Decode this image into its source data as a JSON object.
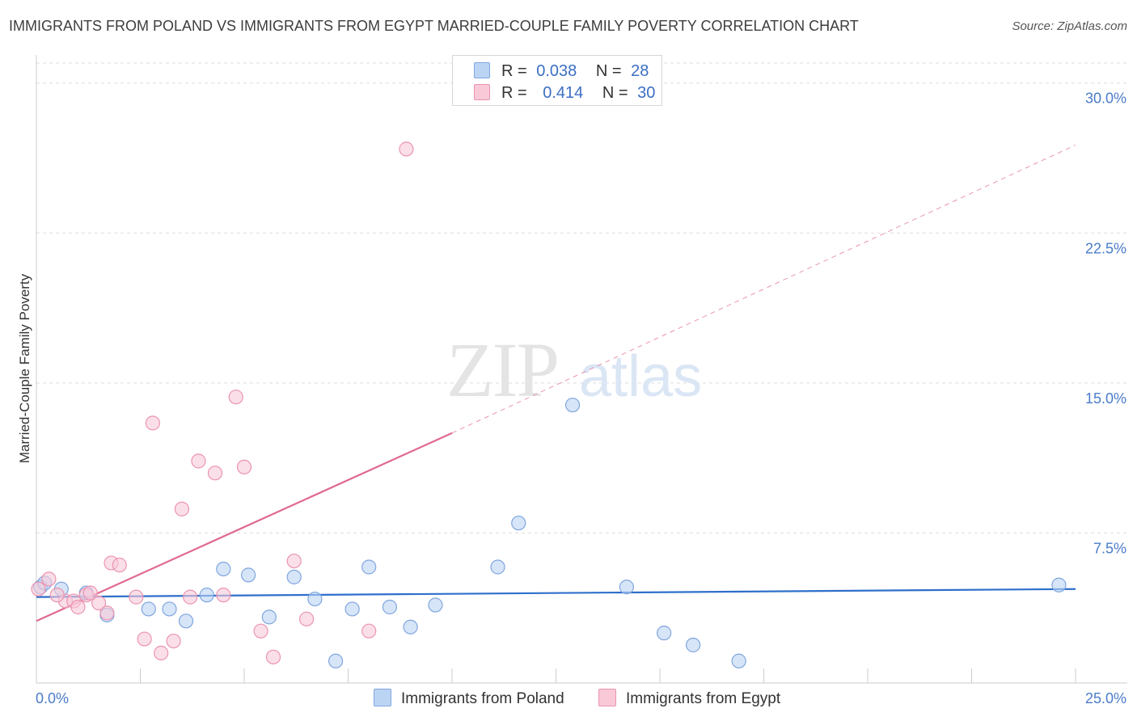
{
  "header": {
    "title": "IMMIGRANTS FROM POLAND VS IMMIGRANTS FROM EGYPT MARRIED-COUPLE FAMILY POVERTY CORRELATION CHART",
    "source": "Source: ZipAtlas.com"
  },
  "watermark": {
    "zip": "ZIP",
    "atlas": "atlas"
  },
  "legend": {
    "poland": {
      "r_label": "R =",
      "r_value": "0.038",
      "n_label": "N =",
      "n_value": "28"
    },
    "egypt": {
      "r_label": "R =",
      "r_value": "0.414",
      "n_label": "N =",
      "n_value": "30"
    }
  },
  "colors": {
    "poland_fill": "#bcd4f4",
    "poland_stroke": "#7fa6df",
    "poland_line": "#2e6fcb",
    "egypt_fill": "#f9c9d8",
    "egypt_stroke": "#eb94b0",
    "egypt_line": "#e06990",
    "grid": "#dddddd",
    "tick_text": "#4a7cc9"
  },
  "chart_data": {
    "type": "scatter",
    "title": "IMMIGRANTS FROM POLAND VS IMMIGRANTS FROM EGYPT MARRIED-COUPLE FAMILY POVERTY CORRELATION CHART",
    "xlabel": "",
    "ylabel": "Married-Couple Family Poverty",
    "xlim": [
      0,
      25
    ],
    "ylim": [
      0,
      31
    ],
    "x_tick_labels": [
      "0.0%",
      "25.0%"
    ],
    "y_ticks": [
      7.5,
      15.0,
      22.5,
      30.0
    ],
    "y_tick_labels": [
      "7.5%",
      "15.0%",
      "22.5%",
      "30.0%"
    ],
    "series": [
      {
        "name": "Immigrants from Poland",
        "points": [
          [
            0.1,
            4.8
          ],
          [
            0.6,
            4.7
          ],
          [
            1.2,
            4.5
          ],
          [
            1.7,
            3.4
          ],
          [
            2.7,
            3.7
          ],
          [
            3.2,
            3.7
          ],
          [
            3.6,
            3.1
          ],
          [
            4.1,
            4.4
          ],
          [
            4.5,
            5.7
          ],
          [
            5.1,
            5.4
          ],
          [
            5.6,
            3.3
          ],
          [
            6.2,
            5.3
          ],
          [
            6.7,
            4.2
          ],
          [
            7.2,
            1.1
          ],
          [
            7.6,
            3.7
          ],
          [
            8.0,
            5.8
          ],
          [
            8.5,
            3.8
          ],
          [
            9.0,
            2.8
          ],
          [
            9.6,
            3.9
          ],
          [
            11.1,
            5.8
          ],
          [
            11.6,
            8.0
          ],
          [
            12.9,
            13.9
          ],
          [
            14.2,
            4.8
          ],
          [
            15.1,
            2.5
          ],
          [
            15.8,
            1.9
          ],
          [
            16.9,
            1.1
          ],
          [
            24.6,
            4.9
          ],
          [
            0.2,
            5.0
          ]
        ],
        "trend": {
          "x": [
            0,
            25
          ],
          "y": [
            4.3,
            4.7
          ],
          "style": "solid"
        }
      },
      {
        "name": "Immigrants from Egypt",
        "points": [
          [
            0.05,
            4.7
          ],
          [
            0.3,
            5.2
          ],
          [
            0.7,
            4.1
          ],
          [
            0.9,
            4.1
          ],
          [
            1.0,
            3.8
          ],
          [
            1.2,
            4.4
          ],
          [
            1.5,
            4.0
          ],
          [
            1.8,
            6.0
          ],
          [
            2.0,
            5.9
          ],
          [
            2.4,
            4.3
          ],
          [
            2.6,
            2.2
          ],
          [
            2.8,
            13.0
          ],
          [
            3.0,
            1.5
          ],
          [
            3.3,
            2.1
          ],
          [
            3.5,
            8.7
          ],
          [
            3.7,
            4.3
          ],
          [
            3.9,
            11.1
          ],
          [
            4.3,
            10.5
          ],
          [
            4.5,
            4.4
          ],
          [
            4.8,
            14.3
          ],
          [
            5.0,
            10.8
          ],
          [
            5.4,
            2.6
          ],
          [
            5.7,
            1.3
          ],
          [
            6.2,
            6.1
          ],
          [
            6.5,
            3.2
          ],
          [
            8.0,
            2.6
          ],
          [
            8.9,
            26.7
          ],
          [
            1.3,
            4.5
          ],
          [
            0.5,
            4.4
          ],
          [
            1.7,
            3.5
          ]
        ],
        "trend": {
          "x": [
            0,
            10
          ],
          "y": [
            3.1,
            12.5
          ],
          "style": "solid"
        },
        "trend_extension": {
          "x": [
            10,
            25
          ],
          "y": [
            12.5,
            26.9
          ],
          "style": "dashed"
        }
      }
    ]
  },
  "bottom_legend": {
    "poland": "Immigrants from Poland",
    "egypt": "Immigrants from Egypt"
  }
}
